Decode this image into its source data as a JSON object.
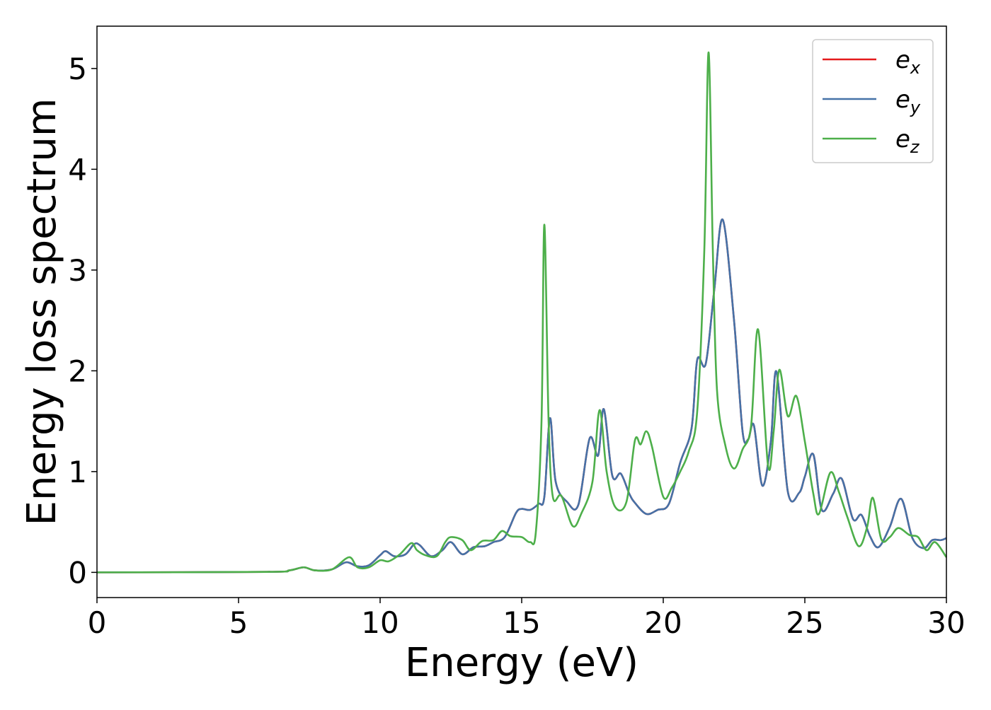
{
  "chart_data": {
    "type": "line",
    "xlabel": "Energy (eV)",
    "ylabel": "Energy loss spectrum",
    "xlim": [
      0,
      30
    ],
    "ylim": [
      -0.25,
      5.42
    ],
    "xticks": [
      "0",
      "5",
      "10",
      "15",
      "20",
      "25",
      "30"
    ],
    "yticks": [
      "0",
      "1",
      "2",
      "3",
      "4",
      "5"
    ],
    "grid": false,
    "legend_position": "top-right",
    "series": [
      {
        "name": "e",
        "subscript": "x",
        "color": "#e41a1c",
        "hidden_under": "e_y",
        "points": [
          [
            0,
            0
          ],
          [
            6,
            0.005
          ],
          [
            6.8,
            0.02
          ],
          [
            7.3,
            0.05
          ],
          [
            7.7,
            0.02
          ],
          [
            8.3,
            0.03
          ],
          [
            8.8,
            0.1
          ],
          [
            9.2,
            0.06
          ],
          [
            9.6,
            0.07
          ],
          [
            10.0,
            0.17
          ],
          [
            10.2,
            0.21
          ],
          [
            10.5,
            0.16
          ],
          [
            10.9,
            0.18
          ],
          [
            11.2,
            0.28
          ],
          [
            11.4,
            0.27
          ],
          [
            11.8,
            0.16
          ],
          [
            12.2,
            0.22
          ],
          [
            12.5,
            0.3
          ],
          [
            12.9,
            0.18
          ],
          [
            13.3,
            0.25
          ],
          [
            13.7,
            0.26
          ],
          [
            14.0,
            0.3
          ],
          [
            14.4,
            0.35
          ],
          [
            14.8,
            0.59
          ],
          [
            15.0,
            0.63
          ],
          [
            15.3,
            0.62
          ],
          [
            15.6,
            0.68
          ],
          [
            15.8,
            0.75
          ],
          [
            16.0,
            1.53
          ],
          [
            16.2,
            0.9
          ],
          [
            16.6,
            0.7
          ],
          [
            17.0,
            0.67
          ],
          [
            17.4,
            1.33
          ],
          [
            17.7,
            1.16
          ],
          [
            17.9,
            1.62
          ],
          [
            18.2,
            0.96
          ],
          [
            18.5,
            0.98
          ],
          [
            18.8,
            0.78
          ],
          [
            19.0,
            0.69
          ],
          [
            19.4,
            0.58
          ],
          [
            19.8,
            0.62
          ],
          [
            20.2,
            0.68
          ],
          [
            20.6,
            1.09
          ],
          [
            21.0,
            1.43
          ],
          [
            21.2,
            2.11
          ],
          [
            21.5,
            2.07
          ],
          [
            21.8,
            2.8
          ],
          [
            22.1,
            3.5
          ],
          [
            22.5,
            2.5
          ],
          [
            22.8,
            1.4
          ],
          [
            23.0,
            1.32
          ],
          [
            23.2,
            1.46
          ],
          [
            23.5,
            0.86
          ],
          [
            23.8,
            1.3
          ],
          [
            24.0,
            1.99
          ],
          [
            24.4,
            0.8
          ],
          [
            24.8,
            0.79
          ],
          [
            25.0,
            0.95
          ],
          [
            25.3,
            1.17
          ],
          [
            25.6,
            0.62
          ],
          [
            26.0,
            0.78
          ],
          [
            26.3,
            0.93
          ],
          [
            26.7,
            0.53
          ],
          [
            27.0,
            0.57
          ],
          [
            27.3,
            0.36
          ],
          [
            27.6,
            0.25
          ],
          [
            28.0,
            0.45
          ],
          [
            28.4,
            0.73
          ],
          [
            28.8,
            0.34
          ],
          [
            29.2,
            0.24
          ],
          [
            29.5,
            0.32
          ],
          [
            29.8,
            0.32
          ],
          [
            30.0,
            0.34
          ]
        ]
      },
      {
        "name": "e",
        "subscript": "y",
        "color": "#4572a7",
        "points": [
          [
            0,
            0
          ],
          [
            6,
            0.005
          ],
          [
            6.8,
            0.02
          ],
          [
            7.3,
            0.05
          ],
          [
            7.7,
            0.02
          ],
          [
            8.3,
            0.03
          ],
          [
            8.8,
            0.1
          ],
          [
            9.2,
            0.06
          ],
          [
            9.6,
            0.07
          ],
          [
            10.0,
            0.17
          ],
          [
            10.2,
            0.21
          ],
          [
            10.5,
            0.16
          ],
          [
            10.9,
            0.18
          ],
          [
            11.2,
            0.28
          ],
          [
            11.4,
            0.27
          ],
          [
            11.8,
            0.16
          ],
          [
            12.2,
            0.22
          ],
          [
            12.5,
            0.3
          ],
          [
            12.9,
            0.18
          ],
          [
            13.3,
            0.25
          ],
          [
            13.7,
            0.26
          ],
          [
            14.0,
            0.3
          ],
          [
            14.4,
            0.35
          ],
          [
            14.8,
            0.59
          ],
          [
            15.0,
            0.63
          ],
          [
            15.3,
            0.62
          ],
          [
            15.6,
            0.68
          ],
          [
            15.8,
            0.75
          ],
          [
            16.0,
            1.53
          ],
          [
            16.2,
            0.9
          ],
          [
            16.6,
            0.7
          ],
          [
            17.0,
            0.67
          ],
          [
            17.4,
            1.33
          ],
          [
            17.7,
            1.16
          ],
          [
            17.9,
            1.62
          ],
          [
            18.2,
            0.96
          ],
          [
            18.5,
            0.98
          ],
          [
            18.8,
            0.78
          ],
          [
            19.0,
            0.69
          ],
          [
            19.4,
            0.58
          ],
          [
            19.8,
            0.62
          ],
          [
            20.2,
            0.68
          ],
          [
            20.6,
            1.09
          ],
          [
            21.0,
            1.43
          ],
          [
            21.2,
            2.11
          ],
          [
            21.5,
            2.07
          ],
          [
            21.8,
            2.8
          ],
          [
            22.1,
            3.5
          ],
          [
            22.5,
            2.5
          ],
          [
            22.8,
            1.4
          ],
          [
            23.0,
            1.32
          ],
          [
            23.2,
            1.46
          ],
          [
            23.5,
            0.86
          ],
          [
            23.8,
            1.3
          ],
          [
            24.0,
            1.99
          ],
          [
            24.4,
            0.8
          ],
          [
            24.8,
            0.79
          ],
          [
            25.0,
            0.95
          ],
          [
            25.3,
            1.17
          ],
          [
            25.6,
            0.62
          ],
          [
            26.0,
            0.78
          ],
          [
            26.3,
            0.93
          ],
          [
            26.7,
            0.53
          ],
          [
            27.0,
            0.57
          ],
          [
            27.3,
            0.36
          ],
          [
            27.6,
            0.25
          ],
          [
            28.0,
            0.45
          ],
          [
            28.4,
            0.73
          ],
          [
            28.8,
            0.34
          ],
          [
            29.2,
            0.24
          ],
          [
            29.5,
            0.32
          ],
          [
            29.8,
            0.32
          ],
          [
            30.0,
            0.34
          ]
        ]
      },
      {
        "name": "e",
        "subscript": "z",
        "color": "#4daf4a",
        "points": [
          [
            0,
            0
          ],
          [
            6,
            0.005
          ],
          [
            6.8,
            0.02
          ],
          [
            7.3,
            0.05
          ],
          [
            7.7,
            0.02
          ],
          [
            8.3,
            0.03
          ],
          [
            8.9,
            0.15
          ],
          [
            9.2,
            0.05
          ],
          [
            9.6,
            0.05
          ],
          [
            10.0,
            0.12
          ],
          [
            10.3,
            0.11
          ],
          [
            10.7,
            0.18
          ],
          [
            11.1,
            0.29
          ],
          [
            11.3,
            0.22
          ],
          [
            11.6,
            0.17
          ],
          [
            12.0,
            0.16
          ],
          [
            12.3,
            0.3
          ],
          [
            12.5,
            0.35
          ],
          [
            12.9,
            0.32
          ],
          [
            13.2,
            0.22
          ],
          [
            13.6,
            0.31
          ],
          [
            14.0,
            0.32
          ],
          [
            14.3,
            0.41
          ],
          [
            14.6,
            0.36
          ],
          [
            15.0,
            0.35
          ],
          [
            15.3,
            0.3
          ],
          [
            15.5,
            0.4
          ],
          [
            15.7,
            1.5
          ],
          [
            15.8,
            3.45
          ],
          [
            15.95,
            1.5
          ],
          [
            16.1,
            0.75
          ],
          [
            16.4,
            0.76
          ],
          [
            16.8,
            0.46
          ],
          [
            17.1,
            0.58
          ],
          [
            17.5,
            0.9
          ],
          [
            17.75,
            1.61
          ],
          [
            18.0,
            1.0
          ],
          [
            18.3,
            0.65
          ],
          [
            18.7,
            0.7
          ],
          [
            19.0,
            1.31
          ],
          [
            19.2,
            1.27
          ],
          [
            19.4,
            1.4
          ],
          [
            19.6,
            1.25
          ],
          [
            20.0,
            0.75
          ],
          [
            20.3,
            0.84
          ],
          [
            20.6,
            1.0
          ],
          [
            20.9,
            1.2
          ],
          [
            21.2,
            1.6
          ],
          [
            21.45,
            3.2
          ],
          [
            21.6,
            5.16
          ],
          [
            21.75,
            3.2
          ],
          [
            21.9,
            1.8
          ],
          [
            22.2,
            1.25
          ],
          [
            22.5,
            1.03
          ],
          [
            22.8,
            1.22
          ],
          [
            23.1,
            1.45
          ],
          [
            23.35,
            2.41
          ],
          [
            23.7,
            1.06
          ],
          [
            23.9,
            1.4
          ],
          [
            24.1,
            2.01
          ],
          [
            24.4,
            1.55
          ],
          [
            24.7,
            1.75
          ],
          [
            25.0,
            1.3
          ],
          [
            25.3,
            0.78
          ],
          [
            25.5,
            0.58
          ],
          [
            25.9,
            0.99
          ],
          [
            26.2,
            0.8
          ],
          [
            26.5,
            0.55
          ],
          [
            26.9,
            0.26
          ],
          [
            27.2,
            0.45
          ],
          [
            27.4,
            0.74
          ],
          [
            27.7,
            0.33
          ],
          [
            28.0,
            0.35
          ],
          [
            28.3,
            0.44
          ],
          [
            28.7,
            0.37
          ],
          [
            29.0,
            0.35
          ],
          [
            29.3,
            0.22
          ],
          [
            29.6,
            0.3
          ],
          [
            30.0,
            0.15
          ]
        ]
      }
    ]
  }
}
